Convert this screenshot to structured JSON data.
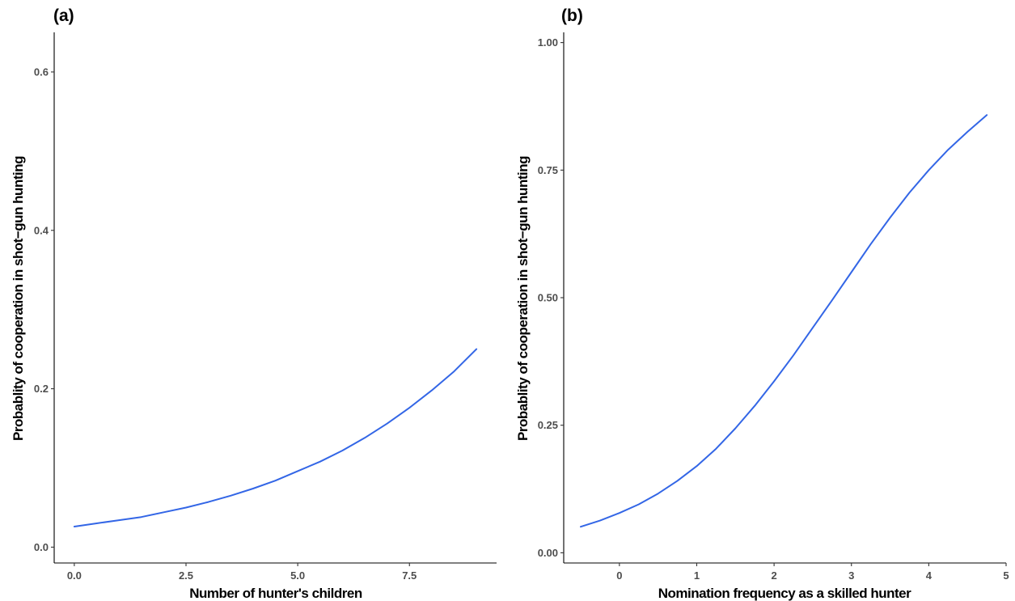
{
  "colors": {
    "line": "#3366e6"
  },
  "chart_data": [
    {
      "type": "line",
      "panel_label": "(a)",
      "title": "",
      "xlabel": "Number of hunter's children",
      "ylabel": "Probablity of cooperation in shot−gun hunting",
      "xlim": [
        -0.45,
        9.45
      ],
      "ylim": [
        -0.02,
        0.65
      ],
      "xticks": [
        0.0,
        2.5,
        5.0,
        7.5
      ],
      "xtick_labels": [
        "0.0",
        "2.5",
        "5.0",
        "7.5"
      ],
      "yticks": [
        0.0,
        0.2,
        0.4,
        0.6
      ],
      "ytick_labels": [
        "0.0",
        "0.2",
        "0.4",
        "0.6"
      ],
      "grid": false,
      "series": [
        {
          "x": [
            0,
            0.5,
            1,
            1.5,
            2,
            2.5,
            3,
            3.5,
            4,
            4.5,
            5,
            5.5,
            6,
            6.5,
            7,
            7.5,
            8,
            8.5,
            9
          ],
          "y": [
            0.026,
            0.03,
            0.034,
            0.038,
            0.044,
            0.05,
            0.057,
            0.065,
            0.074,
            0.084,
            0.096,
            0.108,
            0.122,
            0.138,
            0.156,
            0.176,
            0.198,
            0.222,
            0.25
          ]
        }
      ]
    },
    {
      "type": "line",
      "panel_label": "(b)",
      "title": "",
      "xlabel": "Nomination frequency as a skilled hunter",
      "ylabel": "Probablity of cooperation in shot−gun hunting",
      "xlim": [
        -0.72,
        5.0
      ],
      "ylim": [
        -0.02,
        1.02
      ],
      "xticks": [
        0,
        1,
        2,
        3,
        4,
        5
      ],
      "xtick_labels": [
        "0",
        "1",
        "2",
        "3",
        "4",
        "5"
      ],
      "yticks": [
        0.0,
        0.25,
        0.5,
        0.75,
        1.0
      ],
      "ytick_labels": [
        "0.00",
        "0.25",
        "0.50",
        "0.75",
        "1.00"
      ],
      "grid": false,
      "series": [
        {
          "x": [
            -0.5,
            -0.25,
            0,
            0.25,
            0.5,
            0.75,
            1,
            1.25,
            1.5,
            1.75,
            2,
            2.25,
            2.5,
            2.75,
            3,
            3.25,
            3.5,
            3.75,
            4,
            4.25,
            4.5,
            4.75
          ],
          "y": [
            0.051,
            0.063,
            0.078,
            0.095,
            0.116,
            0.141,
            0.17,
            0.204,
            0.244,
            0.288,
            0.336,
            0.387,
            0.441,
            0.495,
            0.55,
            0.605,
            0.657,
            0.706,
            0.75,
            0.79,
            0.825,
            0.858
          ]
        }
      ]
    }
  ]
}
